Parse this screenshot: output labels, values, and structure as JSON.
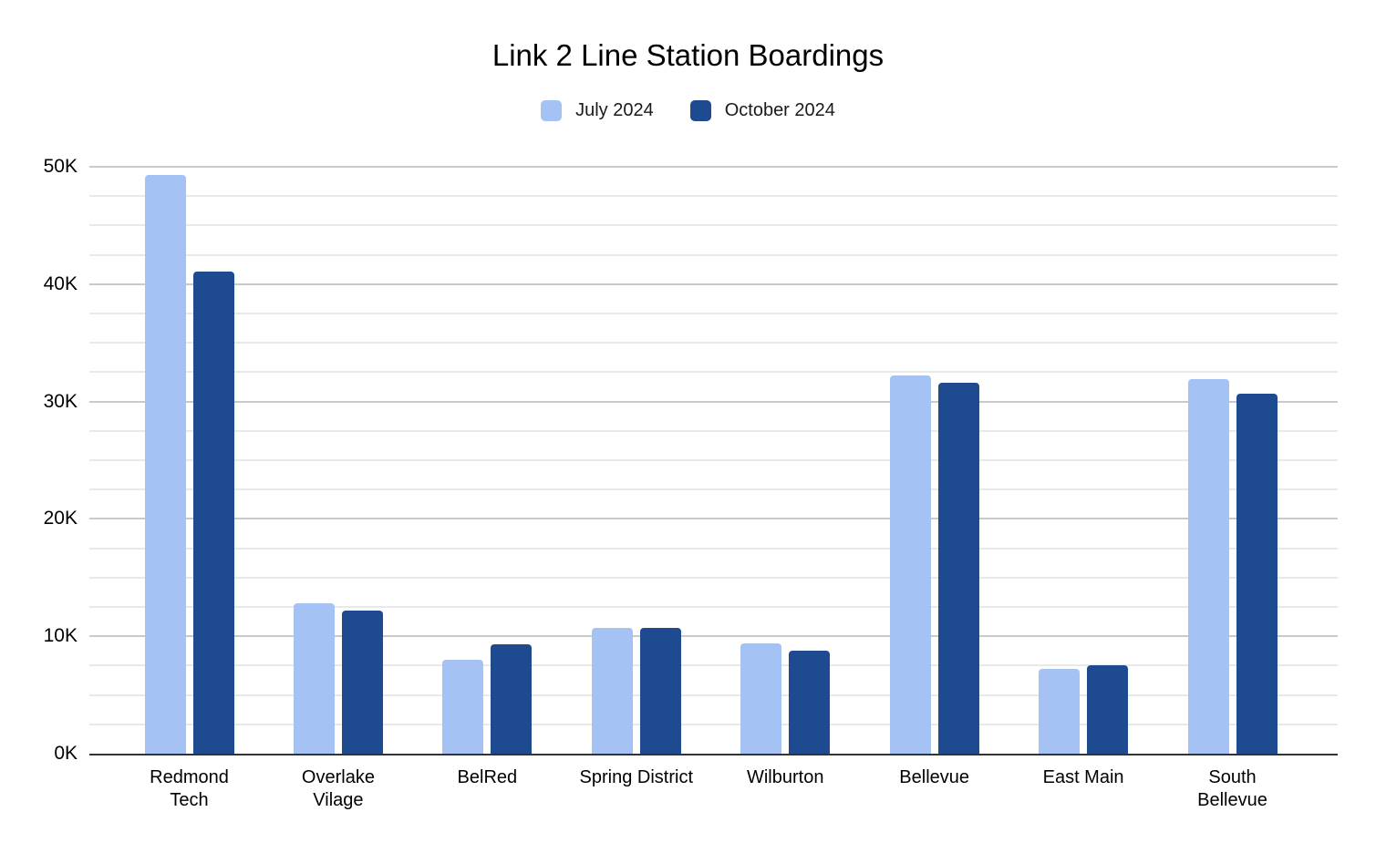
{
  "title": "Link 2 Line Station Boardings",
  "colors": {
    "background": "#ffffff",
    "series_july": "#a4c2f4",
    "series_october": "#1e4b8f",
    "gridline_major": "#c9c9c9",
    "gridline_minor": "#e9e9e9",
    "baseline": "#333333",
    "text": "#000000"
  },
  "chart_data": {
    "type": "bar",
    "title": "Link 2 Line Station Boardings",
    "xlabel": "",
    "ylabel": "",
    "categories": [
      "Redmond Tech",
      "Overlake Vilage",
      "BelRed",
      "Spring District",
      "Wilburton",
      "Bellevue",
      "East Main",
      "South Bellevue"
    ],
    "category_display_lines": [
      "Redmond\nTech",
      "Overlake\nVilage",
      "BelRed",
      "Spring District",
      "Wilburton",
      "Bellevue",
      "East Main",
      "South\nBellevue"
    ],
    "series": [
      {
        "name": "July 2024",
        "color": "#a4c2f4",
        "values": [
          49300,
          12800,
          8000,
          10700,
          9400,
          32200,
          7200,
          31900
        ]
      },
      {
        "name": "October 2024",
        "color": "#1e4b8f",
        "values": [
          41100,
          12200,
          9300,
          10750,
          8800,
          31600,
          7500,
          30700
        ]
      }
    ],
    "ylim": [
      0,
      50000
    ],
    "yticks": [
      {
        "value": 0,
        "label": "0K"
      },
      {
        "value": 10000,
        "label": "10K"
      },
      {
        "value": 20000,
        "label": "20K"
      },
      {
        "value": 30000,
        "label": "30K"
      },
      {
        "value": 40000,
        "label": "40K"
      },
      {
        "value": 50000,
        "label": "50K"
      }
    ],
    "minor_tick_step": 2500,
    "grid": true,
    "legend_position": "top"
  }
}
